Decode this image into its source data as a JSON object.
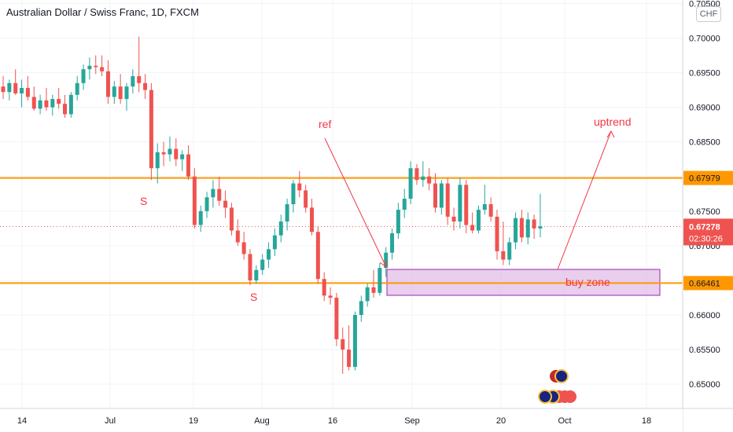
{
  "header": {
    "title": "Australian Dollar / Swiss Franc, 1D, FXCM",
    "currency": "CHF"
  },
  "price_axis": {
    "ticks": [
      "0.70500",
      "0.70000",
      "0.69500",
      "0.69000",
      "0.68500",
      "0.68000",
      "0.67500",
      "0.67000",
      "0.66500",
      "0.66000",
      "0.65500",
      "0.65000"
    ]
  },
  "time_axis": {
    "ticks": [
      "14",
      "Jul",
      "19",
      "Aug",
      "16",
      "Sep",
      "20",
      "Oct",
      "18"
    ]
  },
  "levels": [
    {
      "price": 0.67979,
      "label": "0.67979",
      "color": "#ff9800"
    },
    {
      "price": 0.66461,
      "label": "0.66461",
      "color": "#ff9800"
    }
  ],
  "last_price": {
    "price": 0.67278,
    "label": "0.67278",
    "countdown": "02:30:26",
    "color": "#ef5350"
  },
  "annotations": {
    "ref": "ref",
    "uptrend": "uptrend",
    "buy_zone": "buy zone",
    "swing_1": "S",
    "swing_2": "S"
  },
  "colors": {
    "up": "#26a69a",
    "down": "#ef5350",
    "level": "#ff9800",
    "annotation": "#f23645",
    "zone_fill": "#e1bee7",
    "zone_border": "#9c27b0"
  },
  "chart_data": {
    "type": "candlestick",
    "title": "Australian Dollar / Swiss Franc, 1D, FXCM",
    "currency": "CHF",
    "xlabel": "",
    "ylabel": "",
    "ylim": [
      0.6465,
      0.7055
    ],
    "grid": true,
    "x_ticks": [
      "14",
      "Jul",
      "19",
      "Aug",
      "16",
      "Sep",
      "20",
      "Oct",
      "18"
    ],
    "ohlc": [
      [
        0.693,
        0.6945,
        0.6912,
        0.6922
      ],
      [
        0.6922,
        0.694,
        0.691,
        0.6935
      ],
      [
        0.6935,
        0.6955,
        0.6918,
        0.692
      ],
      [
        0.692,
        0.694,
        0.69,
        0.6928
      ],
      [
        0.6928,
        0.6945,
        0.691,
        0.6915
      ],
      [
        0.6915,
        0.693,
        0.6895,
        0.6898
      ],
      [
        0.6898,
        0.6918,
        0.689,
        0.691
      ],
      [
        0.691,
        0.6928,
        0.6895,
        0.69
      ],
      [
        0.69,
        0.6918,
        0.6888,
        0.6912
      ],
      [
        0.6912,
        0.6928,
        0.6898,
        0.6905
      ],
      [
        0.6905,
        0.6918,
        0.6885,
        0.689
      ],
      [
        0.689,
        0.6922,
        0.6885,
        0.6918
      ],
      [
        0.6918,
        0.6945,
        0.691,
        0.6935
      ],
      [
        0.6935,
        0.6962,
        0.6925,
        0.6955
      ],
      [
        0.6955,
        0.6972,
        0.694,
        0.696
      ],
      [
        0.696,
        0.6975,
        0.6948,
        0.6958
      ],
      [
        0.6958,
        0.6975,
        0.6945,
        0.6952
      ],
      [
        0.6952,
        0.6968,
        0.6905,
        0.6915
      ],
      [
        0.6915,
        0.6938,
        0.6905,
        0.693
      ],
      [
        0.693,
        0.6948,
        0.6905,
        0.6912
      ],
      [
        0.6912,
        0.6935,
        0.6895,
        0.693
      ],
      [
        0.693,
        0.6955,
        0.692,
        0.6945
      ],
      [
        0.6945,
        0.7002,
        0.6922,
        0.6935
      ],
      [
        0.6935,
        0.6948,
        0.6912,
        0.6925
      ],
      [
        0.6925,
        0.6935,
        0.6795,
        0.6812
      ],
      [
        0.6812,
        0.6848,
        0.679,
        0.6835
      ],
      [
        0.6835,
        0.685,
        0.6815,
        0.6832
      ],
      [
        0.6832,
        0.6858,
        0.6822,
        0.684
      ],
      [
        0.684,
        0.6855,
        0.6815,
        0.6825
      ],
      [
        0.6825,
        0.6838,
        0.6808,
        0.6832
      ],
      [
        0.6832,
        0.6845,
        0.6795,
        0.68
      ],
      [
        0.68,
        0.6812,
        0.6725,
        0.673
      ],
      [
        0.673,
        0.6758,
        0.672,
        0.675
      ],
      [
        0.675,
        0.6778,
        0.674,
        0.677
      ],
      [
        0.677,
        0.6795,
        0.6755,
        0.6782
      ],
      [
        0.6782,
        0.68,
        0.6758,
        0.6765
      ],
      [
        0.6765,
        0.678,
        0.674,
        0.6755
      ],
      [
        0.6755,
        0.6762,
        0.6715,
        0.6722
      ],
      [
        0.6722,
        0.6738,
        0.67,
        0.6705
      ],
      [
        0.6705,
        0.672,
        0.668,
        0.6688
      ],
      [
        0.6688,
        0.6695,
        0.6643,
        0.665
      ],
      [
        0.665,
        0.6672,
        0.6645,
        0.6665
      ],
      [
        0.6665,
        0.6688,
        0.6658,
        0.668
      ],
      [
        0.668,
        0.6705,
        0.6668,
        0.6695
      ],
      [
        0.6695,
        0.6725,
        0.6685,
        0.6715
      ],
      [
        0.6715,
        0.6745,
        0.6705,
        0.6735
      ],
      [
        0.6735,
        0.6768,
        0.6722,
        0.676
      ],
      [
        0.676,
        0.6795,
        0.6748,
        0.679
      ],
      [
        0.679,
        0.6808,
        0.677,
        0.678
      ],
      [
        0.678,
        0.6788,
        0.6748,
        0.6755
      ],
      [
        0.6755,
        0.6768,
        0.6715,
        0.672
      ],
      [
        0.672,
        0.6728,
        0.6645,
        0.6652
      ],
      [
        0.6652,
        0.6662,
        0.662,
        0.6628
      ],
      [
        0.6628,
        0.664,
        0.6615,
        0.6625
      ],
      [
        0.6625,
        0.6632,
        0.6555,
        0.6565
      ],
      [
        0.6565,
        0.6582,
        0.6515,
        0.655
      ],
      [
        0.655,
        0.6585,
        0.652,
        0.6525
      ],
      [
        0.6525,
        0.6605,
        0.652,
        0.66
      ],
      [
        0.66,
        0.6628,
        0.659,
        0.662
      ],
      [
        0.662,
        0.6645,
        0.6612,
        0.664
      ],
      [
        0.664,
        0.6665,
        0.6625,
        0.6632
      ],
      [
        0.6632,
        0.6675,
        0.6628,
        0.6668
      ],
      [
        0.6668,
        0.6698,
        0.6655,
        0.669
      ],
      [
        0.669,
        0.6725,
        0.668,
        0.6718
      ],
      [
        0.6718,
        0.6762,
        0.671,
        0.6752
      ],
      [
        0.6752,
        0.6782,
        0.674,
        0.6768
      ],
      [
        0.6768,
        0.6822,
        0.676,
        0.6812
      ],
      [
        0.6812,
        0.6818,
        0.6788,
        0.6795
      ],
      [
        0.6795,
        0.6822,
        0.6785,
        0.68
      ],
      [
        0.68,
        0.6812,
        0.678,
        0.679
      ],
      [
        0.679,
        0.6805,
        0.6748,
        0.6755
      ],
      [
        0.6755,
        0.6795,
        0.6745,
        0.679
      ],
      [
        0.679,
        0.6798,
        0.673,
        0.6742
      ],
      [
        0.6742,
        0.6755,
        0.6722,
        0.6735
      ],
      [
        0.6735,
        0.6798,
        0.6725,
        0.6788
      ],
      [
        0.6788,
        0.6795,
        0.6718,
        0.673
      ],
      [
        0.673,
        0.6748,
        0.6718,
        0.6722
      ],
      [
        0.6722,
        0.6758,
        0.6718,
        0.6752
      ],
      [
        0.6752,
        0.6788,
        0.6745,
        0.676
      ],
      [
        0.676,
        0.677,
        0.6735,
        0.6742
      ],
      [
        0.6742,
        0.6752,
        0.668,
        0.6692
      ],
      [
        0.6692,
        0.6735,
        0.6672,
        0.668
      ],
      [
        0.668,
        0.6712,
        0.6672,
        0.6705
      ],
      [
        0.6705,
        0.6748,
        0.6695,
        0.674
      ],
      [
        0.674,
        0.6752,
        0.6705,
        0.6712
      ],
      [
        0.6712,
        0.6748,
        0.6702,
        0.6738
      ],
      [
        0.6738,
        0.6745,
        0.671,
        0.6725
      ],
      [
        0.6725,
        0.6775,
        0.6712,
        0.6728
      ]
    ]
  }
}
